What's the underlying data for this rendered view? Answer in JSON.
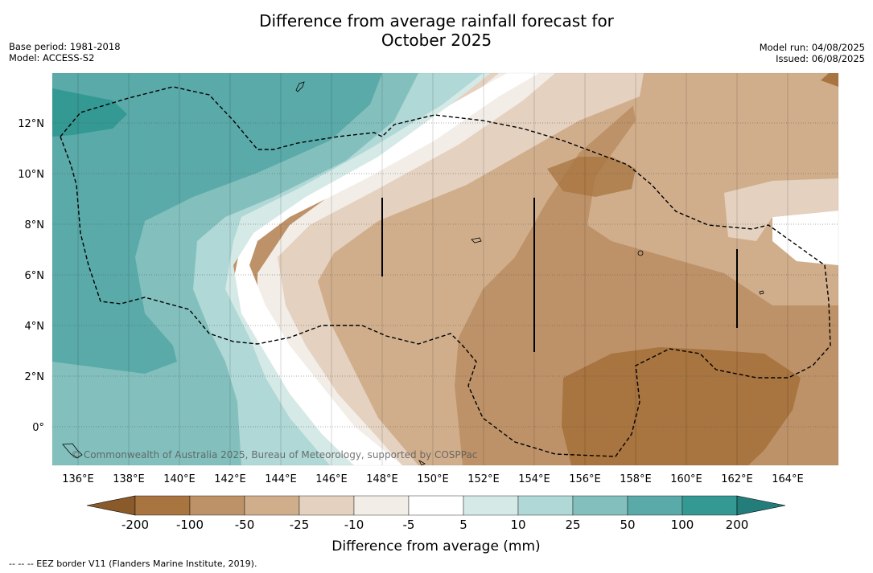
{
  "title_line1": "Difference from average rainfall forecast for",
  "title_line2": "October 2025",
  "meta_left": {
    "base_period": "Base period: 1981-2018",
    "model": "Model: ACCESS-S2"
  },
  "meta_right": {
    "model_run": "Model run: 04/08/2025",
    "issued": "Issued: 06/08/2025"
  },
  "copyright": "© Commonwealth of Australia 2025, Bureau of Meteorology, supported by COSPPac",
  "x_ticks": [
    "136°E",
    "138°E",
    "140°E",
    "142°E",
    "144°E",
    "146°E",
    "148°E",
    "150°E",
    "152°E",
    "154°E",
    "156°E",
    "158°E",
    "160°E",
    "162°E",
    "164°E"
  ],
  "y_ticks": [
    "12°N",
    "10°N",
    "8°N",
    "6°N",
    "4°N",
    "2°N",
    "0°"
  ],
  "colorbar": {
    "labels": [
      "-200",
      "-100",
      "-50",
      "-25",
      "-10",
      "-5",
      "5",
      "10",
      "25",
      "50",
      "100",
      "200"
    ],
    "colors": [
      "#8b5a2b",
      "#a8743f",
      "#be9268",
      "#d0ae8c",
      "#e4d1bf",
      "#f3ede7",
      "#ffffff",
      "#d5e9e7",
      "#afd8d6",
      "#83c0bd",
      "#5aaaa9",
      "#349893",
      "#237e7b"
    ],
    "title": "Difference from average (mm)"
  },
  "footnote": "--  --  -- EEZ border V11 (Flanders Marine Institute, 2019)."
}
